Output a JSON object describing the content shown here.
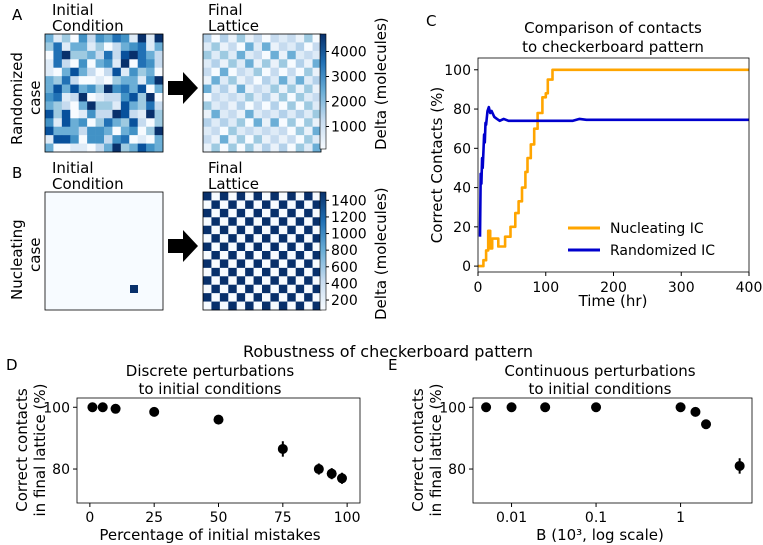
{
  "panels": {
    "A": {
      "letter": "A",
      "row_label": [
        "Randomized",
        "case"
      ],
      "initial_title": [
        "Initial",
        "Condition"
      ],
      "final_title": [
        "Final",
        "Lattice"
      ],
      "colorbar_label": "Delta (molecules)",
      "colorbar_ticks": [
        1000,
        2000,
        3000,
        4000
      ]
    },
    "B": {
      "letter": "B",
      "row_label": [
        "Nucleating",
        "case"
      ],
      "initial_title": [
        "Initial",
        "Condition"
      ],
      "final_title": [
        "Final",
        "Lattice"
      ],
      "colorbar_label": "Delta (molecules)",
      "colorbar_ticks": [
        200,
        400,
        600,
        800,
        1000,
        1200,
        1400
      ]
    },
    "section_title": "Robustness of checkerboard pattern",
    "colors": {
      "lattice_dark": "#08306b",
      "lattice_light": "#f7fbff",
      "nucleating": "#ffa500",
      "randomized": "#0000cd",
      "marker": "#000000"
    }
  },
  "chart_data": [
    {
      "panel": "C",
      "type": "line",
      "title": [
        "Comparison of contacts",
        "to checkerboard pattern"
      ],
      "xlabel": "Time (hr)",
      "ylabel": "Correct Contacts (%)",
      "xlim": [
        0,
        400
      ],
      "ylim": [
        -3,
        106
      ],
      "xticks": [
        0,
        100,
        200,
        300,
        400
      ],
      "yticks": [
        0,
        20,
        40,
        60,
        80,
        100
      ],
      "legend_position": "lower-right",
      "series": [
        {
          "name": "Nucleating IC",
          "color": "#ffa500",
          "x": [
            0,
            8,
            8,
            12,
            12,
            15,
            15,
            18,
            18,
            21,
            21,
            30,
            30,
            40,
            40,
            48,
            48,
            55,
            55,
            60,
            60,
            65,
            65,
            70,
            70,
            73,
            73,
            78,
            78,
            83,
            83,
            88,
            88,
            95,
            95,
            100,
            100,
            103,
            103,
            110,
            110,
            400
          ],
          "y": [
            0,
            0,
            3,
            3,
            8,
            8,
            18,
            18,
            9,
            9,
            14,
            14,
            10,
            10,
            15,
            15,
            20,
            20,
            27,
            27,
            33,
            33,
            40,
            40,
            48,
            48,
            55,
            55,
            62,
            62,
            70,
            70,
            78,
            78,
            86,
            86,
            88,
            88,
            95,
            95,
            100,
            100
          ]
        },
        {
          "name": "Randomized IC",
          "color": "#0000cd",
          "x": [
            3,
            4,
            5,
            6,
            7,
            8,
            9,
            10,
            11,
            12,
            14,
            16,
            18,
            20,
            24,
            28,
            32,
            38,
            45,
            55,
            70,
            100,
            140,
            150,
            160,
            200,
            300,
            400
          ],
          "y": [
            15,
            47,
            42,
            55,
            50,
            58,
            67,
            63,
            73,
            72,
            79,
            81,
            78,
            79,
            76,
            75,
            74,
            75,
            74,
            74,
            74,
            74,
            74,
            75,
            74.5,
            74.5,
            74.5,
            74.5
          ]
        }
      ]
    },
    {
      "panel": "D",
      "type": "scatter",
      "title": [
        "Discrete perturbations",
        "to initial conditions"
      ],
      "xlabel": "Percentage of initial mistakes",
      "ylabel": [
        "Correct contacts",
        "in final lattice (%)"
      ],
      "xlim": [
        -5,
        105
      ],
      "ylim": [
        69,
        103
      ],
      "xticks": [
        0,
        25,
        50,
        75,
        100
      ],
      "yticks": [
        80,
        100
      ],
      "points": [
        {
          "x": 1,
          "y": 100,
          "err": 0.5
        },
        {
          "x": 5,
          "y": 100,
          "err": 0.5
        },
        {
          "x": 10,
          "y": 99.5,
          "err": 0.6
        },
        {
          "x": 25,
          "y": 98.5,
          "err": 0.7
        },
        {
          "x": 50,
          "y": 96,
          "err": 1.2
        },
        {
          "x": 75,
          "y": 86.5,
          "err": 2.5
        },
        {
          "x": 89,
          "y": 80,
          "err": 1.8
        },
        {
          "x": 94,
          "y": 78.5,
          "err": 1.8
        },
        {
          "x": 98,
          "y": 77,
          "err": 1.8
        }
      ]
    },
    {
      "panel": "E",
      "type": "scatter",
      "title": [
        "Continuous perturbations",
        "to initial conditions"
      ],
      "xlabel": "B (10³, log scale)",
      "ylabel": [
        "Correct contacts",
        "in final lattice (%)"
      ],
      "xscale": "log",
      "xlim": [
        0.0035,
        7
      ],
      "ylim": [
        69,
        103
      ],
      "xticks": [
        0.01,
        0.1,
        1
      ],
      "xtick_labels": [
        "0.01",
        "0.1",
        "1"
      ],
      "yticks": [
        80,
        100
      ],
      "points": [
        {
          "x": 0.005,
          "y": 100,
          "err": 0.5
        },
        {
          "x": 0.01,
          "y": 100,
          "err": 0.5
        },
        {
          "x": 0.025,
          "y": 100,
          "err": 0.5
        },
        {
          "x": 0.1,
          "y": 100,
          "err": 0.5
        },
        {
          "x": 1.0,
          "y": 100,
          "err": 0.5
        },
        {
          "x": 1.5,
          "y": 98.5,
          "err": 0.8
        },
        {
          "x": 2.0,
          "y": 94.5,
          "err": 1.5
        },
        {
          "x": 5.0,
          "y": 81,
          "err": 2.5
        }
      ]
    }
  ]
}
